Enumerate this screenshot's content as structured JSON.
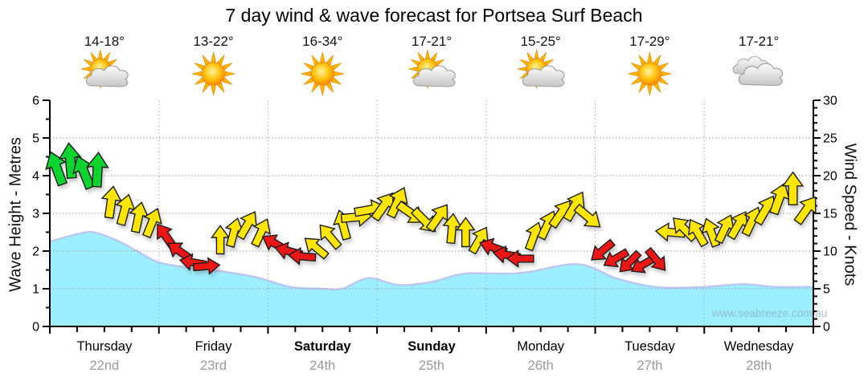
{
  "page": {
    "title": "7 day wind & wave forecast for Portsea Surf Beach",
    "watermark": "www.seabreeze.com.au"
  },
  "colors": {
    "wave_fill": "#9BEFFF",
    "wave_stroke": "#BCC6F2",
    "arrow_green": "#0FD42E",
    "arrow_yellow": "#FFE603",
    "arrow_red": "#EB1212",
    "arrow_outline": "#1c1c1c",
    "axis": "#000000",
    "grid": "#999999",
    "day_grid": "#aaaaaa",
    "day_text": "#000000",
    "date_text": "#999999",
    "temp_text": "#111111",
    "tick_text": "#000000"
  },
  "chart_data": {
    "type": "area",
    "title": "7 day wind & wave forecast for Portsea Surf Beach",
    "y_left": {
      "label": "Wave Height - Metres",
      "min": 0,
      "max": 6,
      "tick_step": 1,
      "minor_step": 0.5,
      "ticks": [
        0,
        1,
        2,
        3,
        4,
        5,
        6
      ]
    },
    "y_right": {
      "label": "Wind Speed - Knots",
      "min": 0,
      "max": 30,
      "tick_step": 5,
      "minor_step": 1,
      "ticks": [
        0,
        5,
        10,
        15,
        20,
        25,
        30
      ]
    },
    "x_axis": {
      "minor_ticks_per_day": 4,
      "days": [
        {
          "name": "Thursday",
          "date": "22nd",
          "temp_range": "14-18°",
          "icon": "sun-cloud",
          "weekend_bold": false
        },
        {
          "name": "Friday",
          "date": "23rd",
          "temp_range": "13-22°",
          "icon": "sun",
          "weekend_bold": false
        },
        {
          "name": "Saturday",
          "date": "24th",
          "temp_range": "16-34°",
          "icon": "sun",
          "weekend_bold": true
        },
        {
          "name": "Sunday",
          "date": "25th",
          "temp_range": "17-21°",
          "icon": "sun-cloud",
          "weekend_bold": true
        },
        {
          "name": "Monday",
          "date": "26th",
          "temp_range": "15-25°",
          "icon": "sun-cloud",
          "weekend_bold": false
        },
        {
          "name": "Tuesday",
          "date": "27th",
          "temp_range": "17-29°",
          "icon": "sun",
          "weekend_bold": false
        },
        {
          "name": "Wednesday",
          "date": "28th",
          "temp_range": "17-21°",
          "icon": "cloud",
          "weekend_bold": false
        }
      ]
    },
    "wave_height_m": {
      "series_name": "Wave Height (metres)",
      "points": [
        {
          "t": 0.0,
          "m": 2.25
        },
        {
          "t": 0.25,
          "m": 2.45
        },
        {
          "t": 0.4,
          "m": 2.5
        },
        {
          "t": 0.6,
          "m": 2.3
        },
        {
          "t": 0.8,
          "m": 2.0
        },
        {
          "t": 1.0,
          "m": 1.7
        },
        {
          "t": 1.3,
          "m": 1.55
        },
        {
          "t": 1.6,
          "m": 1.45
        },
        {
          "t": 1.9,
          "m": 1.3
        },
        {
          "t": 2.2,
          "m": 1.05
        },
        {
          "t": 2.5,
          "m": 1.0
        },
        {
          "t": 2.68,
          "m": 1.0
        },
        {
          "t": 2.92,
          "m": 1.28
        },
        {
          "t": 3.2,
          "m": 1.1
        },
        {
          "t": 3.5,
          "m": 1.18
        },
        {
          "t": 3.8,
          "m": 1.4
        },
        {
          "t": 4.2,
          "m": 1.4
        },
        {
          "t": 4.4,
          "m": 1.45
        },
        {
          "t": 4.85,
          "m": 1.65
        },
        {
          "t": 5.2,
          "m": 1.27
        },
        {
          "t": 5.55,
          "m": 1.05
        },
        {
          "t": 5.95,
          "m": 1.04
        },
        {
          "t": 6.35,
          "m": 1.12
        },
        {
          "t": 6.65,
          "m": 1.05
        },
        {
          "t": 7.0,
          "m": 1.05
        }
      ]
    },
    "wind": {
      "series_name": "Wind Speed & Direction (knots)",
      "points": [
        {
          "t": 0.0625,
          "kn": 21.0,
          "dir_deg": -20,
          "color": "green"
        },
        {
          "t": 0.1875,
          "kn": 22.0,
          "dir_deg": -5,
          "color": "green"
        },
        {
          "t": 0.3125,
          "kn": 20.5,
          "dir_deg": -22,
          "color": "green"
        },
        {
          "t": 0.4375,
          "kn": 20.8,
          "dir_deg": 3,
          "color": "green"
        },
        {
          "t": 0.5625,
          "kn": 16.5,
          "dir_deg": 8,
          "color": "yellow"
        },
        {
          "t": 0.6875,
          "kn": 15.5,
          "dir_deg": 15,
          "color": "yellow"
        },
        {
          "t": 0.8125,
          "kn": 14.5,
          "dir_deg": 12,
          "color": "yellow"
        },
        {
          "t": 0.9375,
          "kn": 13.8,
          "dir_deg": 22,
          "color": "yellow"
        },
        {
          "t": 1.0625,
          "kn": 12.0,
          "dir_deg": -35,
          "color": "red"
        },
        {
          "t": 1.1875,
          "kn": 10.0,
          "dir_deg": -55,
          "color": "red"
        },
        {
          "t": 1.3125,
          "kn": 8.5,
          "dir_deg": -80,
          "color": "red"
        },
        {
          "t": 1.4375,
          "kn": 8.0,
          "dir_deg": 85,
          "color": "red"
        },
        {
          "t": 1.5625,
          "kn": 11.5,
          "dir_deg": 0,
          "color": "yellow"
        },
        {
          "t": 1.6875,
          "kn": 12.5,
          "dir_deg": 15,
          "color": "yellow"
        },
        {
          "t": 1.8125,
          "kn": 13.5,
          "dir_deg": 30,
          "color": "yellow"
        },
        {
          "t": 1.9375,
          "kn": 12.5,
          "dir_deg": 25,
          "color": "yellow"
        },
        {
          "t": 2.0625,
          "kn": 11.0,
          "dir_deg": -60,
          "color": "red"
        },
        {
          "t": 2.1875,
          "kn": 10.0,
          "dir_deg": -75,
          "color": "red"
        },
        {
          "t": 2.3125,
          "kn": 9.3,
          "dir_deg": -85,
          "color": "red"
        },
        {
          "t": 2.4375,
          "kn": 10.5,
          "dir_deg": -50,
          "color": "yellow"
        },
        {
          "t": 2.5625,
          "kn": 12.0,
          "dir_deg": -40,
          "color": "yellow"
        },
        {
          "t": 2.6875,
          "kn": 13.5,
          "dir_deg": -15,
          "color": "yellow"
        },
        {
          "t": 2.8125,
          "kn": 14.5,
          "dir_deg": 85,
          "color": "yellow"
        },
        {
          "t": 2.9375,
          "kn": 15.5,
          "dir_deg": 80,
          "color": "yellow"
        },
        {
          "t": 3.0625,
          "kn": 16.0,
          "dir_deg": 35,
          "color": "yellow"
        },
        {
          "t": 3.1875,
          "kn": 16.5,
          "dir_deg": 25,
          "color": "yellow"
        },
        {
          "t": 3.3125,
          "kn": 15.0,
          "dir_deg": 125,
          "color": "yellow"
        },
        {
          "t": 3.4375,
          "kn": 14.0,
          "dir_deg": 135,
          "color": "yellow"
        },
        {
          "t": 3.5625,
          "kn": 14.5,
          "dir_deg": 35,
          "color": "yellow"
        },
        {
          "t": 3.6875,
          "kn": 13.0,
          "dir_deg": 5,
          "color": "yellow"
        },
        {
          "t": 3.8125,
          "kn": 12.5,
          "dir_deg": 0,
          "color": "yellow"
        },
        {
          "t": 3.9375,
          "kn": 11.5,
          "dir_deg": 30,
          "color": "yellow"
        },
        {
          "t": 4.0625,
          "kn": 10.5,
          "dir_deg": -70,
          "color": "red"
        },
        {
          "t": 4.1875,
          "kn": 9.5,
          "dir_deg": -80,
          "color": "red"
        },
        {
          "t": 4.3125,
          "kn": 9.0,
          "dir_deg": -90,
          "color": "red"
        },
        {
          "t": 4.4375,
          "kn": 12.0,
          "dir_deg": 20,
          "color": "yellow"
        },
        {
          "t": 4.5625,
          "kn": 13.5,
          "dir_deg": 25,
          "color": "yellow"
        },
        {
          "t": 4.6875,
          "kn": 15.0,
          "dir_deg": 35,
          "color": "yellow"
        },
        {
          "t": 4.8125,
          "kn": 16.0,
          "dir_deg": 30,
          "color": "yellow"
        },
        {
          "t": 4.9375,
          "kn": 14.5,
          "dir_deg": 130,
          "color": "yellow"
        },
        {
          "t": 5.0625,
          "kn": 10.0,
          "dir_deg": -130,
          "color": "red"
        },
        {
          "t": 5.1875,
          "kn": 9.0,
          "dir_deg": -120,
          "color": "red"
        },
        {
          "t": 5.3125,
          "kn": 8.5,
          "dir_deg": -135,
          "color": "red"
        },
        {
          "t": 5.4375,
          "kn": 8.2,
          "dir_deg": -120,
          "color": "red"
        },
        {
          "t": 5.5625,
          "kn": 8.8,
          "dir_deg": 140,
          "color": "red"
        },
        {
          "t": 5.6875,
          "kn": 12.5,
          "dir_deg": -85,
          "color": "yellow"
        },
        {
          "t": 5.8125,
          "kn": 13.0,
          "dir_deg": -45,
          "color": "yellow"
        },
        {
          "t": 5.9375,
          "kn": 12.5,
          "dir_deg": -30,
          "color": "yellow"
        },
        {
          "t": 6.0625,
          "kn": 12.5,
          "dir_deg": -20,
          "color": "yellow"
        },
        {
          "t": 6.1875,
          "kn": 13.0,
          "dir_deg": 25,
          "color": "yellow"
        },
        {
          "t": 6.3125,
          "kn": 13.5,
          "dir_deg": 30,
          "color": "yellow"
        },
        {
          "t": 6.4375,
          "kn": 14.0,
          "dir_deg": 25,
          "color": "yellow"
        },
        {
          "t": 6.5625,
          "kn": 15.5,
          "dir_deg": 30,
          "color": "yellow"
        },
        {
          "t": 6.6875,
          "kn": 17.0,
          "dir_deg": 20,
          "color": "yellow"
        },
        {
          "t": 6.8125,
          "kn": 18.3,
          "dir_deg": 0,
          "color": "yellow"
        },
        {
          "t": 6.9375,
          "kn": 15.5,
          "dir_deg": 35,
          "color": "yellow"
        }
      ]
    }
  }
}
